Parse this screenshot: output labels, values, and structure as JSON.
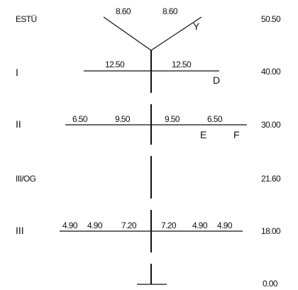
{
  "levels": [
    {
      "name": "ESTÜ",
      "height": "50.50"
    },
    {
      "name": "I",
      "height": "40.00"
    },
    {
      "name": "II",
      "height": "30.00"
    },
    {
      "name": "III/OG",
      "height": "21.60"
    },
    {
      "name": "III",
      "height": "18.00"
    },
    {
      "name": "",
      "height": "0.00"
    }
  ],
  "earth_wire": {
    "spans": [
      "8.60",
      "8.60"
    ],
    "marker": "Y"
  },
  "arm_I": {
    "spans": [
      "12.50",
      "12.50"
    ],
    "marker": "D"
  },
  "arm_II": {
    "spans": [
      "6.50",
      "9.50",
      "9.50",
      "6.50"
    ],
    "markers": [
      "E",
      "F"
    ]
  },
  "arm_III": {
    "spans": [
      "4.90",
      "4.90",
      "7.20",
      "7.20",
      "4.90",
      "4.90"
    ]
  }
}
